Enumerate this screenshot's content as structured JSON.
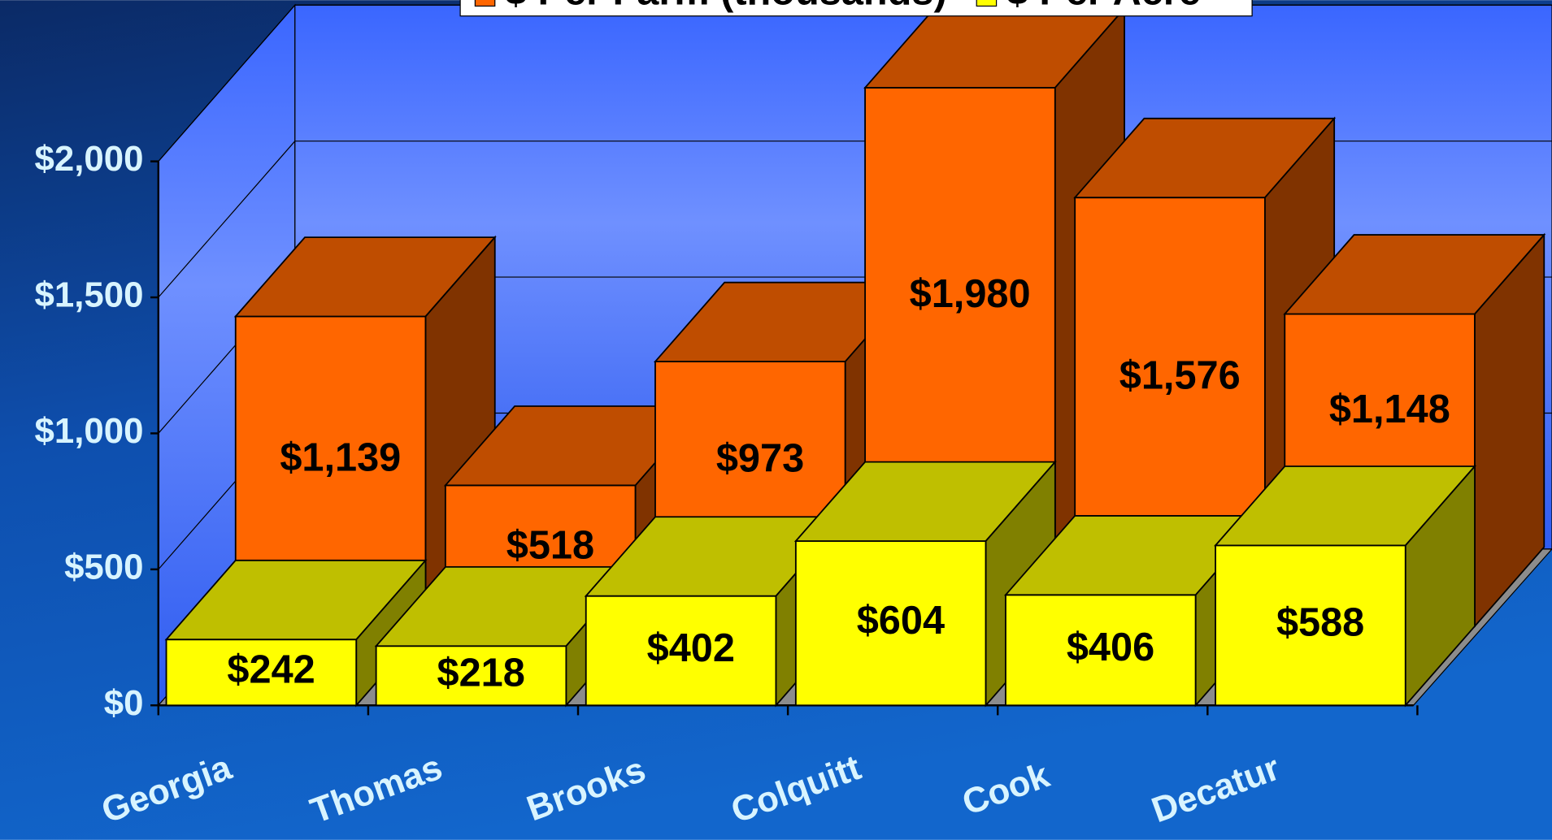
{
  "chart_data": {
    "type": "bar3d",
    "categories": [
      "Georgia",
      "Thomas",
      "Brooks",
      "Colquitt",
      "Cook",
      "Decatur"
    ],
    "series": [
      {
        "name": "$ Per Farm (thousands)",
        "color": "#ff6600",
        "values": [
          1139,
          518,
          973,
          1980,
          1576,
          1148
        ],
        "value_labels": [
          "$1,139",
          "$518",
          "$973",
          "$1,980",
          "$1,576",
          "$1,148"
        ]
      },
      {
        "name": "$ Per Acre",
        "color": "#ffff00",
        "values": [
          242,
          218,
          402,
          604,
          406,
          588
        ],
        "value_labels": [
          "$242",
          "$218",
          "$402",
          "$604",
          "$406",
          "$588"
        ]
      }
    ],
    "ylim": [
      0,
      2000
    ],
    "yticks": [
      {
        "value": 0,
        "label": "$0"
      },
      {
        "value": 500,
        "label": "$500"
      },
      {
        "value": 1000,
        "label": "$1,000"
      },
      {
        "value": 1500,
        "label": "$1,500"
      },
      {
        "value": 2000,
        "label": "$2,000"
      }
    ],
    "grid": true
  }
}
